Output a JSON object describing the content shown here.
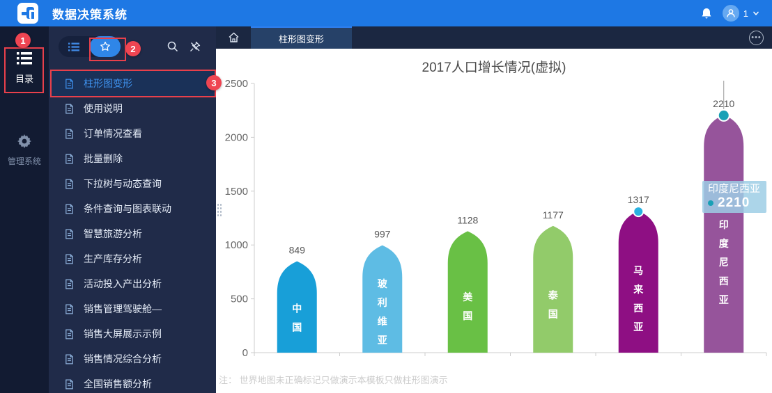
{
  "header": {
    "app_title": "数据决策系统",
    "user_label": "1"
  },
  "rail": {
    "catalog_label": "目录",
    "manage_label": "管理系统"
  },
  "sidebar": {
    "items": [
      {
        "label": "柱形图变形",
        "selected": true
      },
      {
        "label": "使用说明",
        "selected": false
      },
      {
        "label": "订单情况查看",
        "selected": false
      },
      {
        "label": "批量删除",
        "selected": false
      },
      {
        "label": "下拉树与动态查询",
        "selected": false
      },
      {
        "label": "条件查询与图表联动",
        "selected": false
      },
      {
        "label": "智慧旅游分析",
        "selected": false
      },
      {
        "label": "生产库存分析",
        "selected": false
      },
      {
        "label": "活动投入产出分析",
        "selected": false
      },
      {
        "label": "销售管理驾驶舱—",
        "selected": false
      },
      {
        "label": "销售大屏展示示例",
        "selected": false
      },
      {
        "label": "销售情况综合分析",
        "selected": false
      },
      {
        "label": "全国销售额分析",
        "selected": false
      }
    ]
  },
  "tabs": {
    "items": [
      {
        "label": "柱形图变形",
        "active": true
      }
    ],
    "more_glyph": "•••"
  },
  "annotations": {
    "steps": [
      "1",
      "2",
      "3"
    ]
  },
  "chart_data": {
    "type": "bar",
    "title": "2017人口增长情况(虚拟)",
    "categories": [
      "中国",
      "玻利维亚",
      "美国",
      "泰国",
      "马来西亚",
      "印度尼西亚"
    ],
    "values": [
      849,
      997,
      1128,
      1177,
      1317,
      2210
    ],
    "bar_colors": [
      "#189fd8",
      "#5ebce4",
      "#69c045",
      "#92cb6a",
      "#8e0f83",
      "#96549b"
    ],
    "markers": [
      {
        "index": 4,
        "color": "#29b2e0"
      },
      {
        "index": 5,
        "color": "#18a0b6"
      }
    ],
    "xlabel": "",
    "ylabel": "",
    "ylim": [
      0,
      2500
    ],
    "yticks": [
      0,
      500,
      1000,
      1500,
      2000,
      2500
    ],
    "grid": false,
    "legend": null,
    "tooltip": {
      "title": "印度尼西亚",
      "value": "2210",
      "target_index": 5
    }
  },
  "note": "注： 世界地图未正确标记只做演示本模板只做柱形图演示"
}
